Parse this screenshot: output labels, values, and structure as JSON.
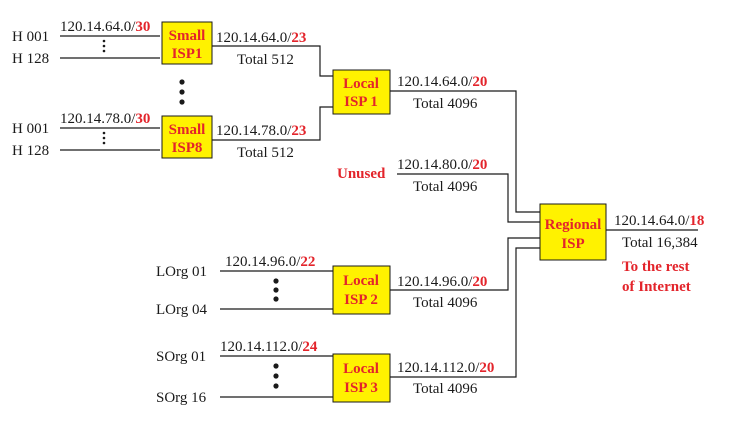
{
  "colors": {
    "accent": "#e3242b",
    "box_fill": "#fff200",
    "line": "#1a1a1a"
  },
  "hosts": {
    "isp1_first": "H 001",
    "isp1_last": "H 128",
    "isp8_first": "H 001",
    "isp8_last": "H 128"
  },
  "small_isp1": {
    "label_l1": "Small",
    "label_l2": "ISP1",
    "in_prefix": "120.14.64.0/",
    "in_len": "30",
    "out_prefix": "120.14.64.0/",
    "out_len": "23",
    "out_total": "Total 512"
  },
  "small_isp8": {
    "label_l1": "Small",
    "label_l2": "ISP8",
    "in_prefix": "120.14.78.0/",
    "in_len": "30",
    "out_prefix": "120.14.78.0/",
    "out_len": "23",
    "out_total": "Total 512"
  },
  "local_isp1": {
    "label_l1": "Local",
    "label_l2": "ISP 1",
    "out_prefix": "120.14.64.0/",
    "out_len": "20",
    "out_total": "Total 4096"
  },
  "unused": {
    "label": "Unused",
    "prefix": "120.14.80.0/",
    "len": "20",
    "total": "Total 4096"
  },
  "regional_isp": {
    "label_l1": "Regional",
    "label_l2": "ISP",
    "out_prefix": "120.14.64.0/",
    "out_len": "18",
    "out_total": "Total 16,384",
    "rest_l1": "To the rest",
    "rest_l2": "of Internet"
  },
  "local_isp2": {
    "label_l1": "Local",
    "label_l2": "ISP 2",
    "org_first": "LOrg 01",
    "org_last": "LOrg 04",
    "in_prefix": "120.14.96.0/",
    "in_len": "22",
    "out_prefix": "120.14.96.0/",
    "out_len": "20",
    "out_total": "Total 4096"
  },
  "local_isp3": {
    "label_l1": "Local",
    "label_l2": "ISP 3",
    "org_first": "SOrg 01",
    "org_last": "SOrg 16",
    "in_prefix": "120.14.112.0/",
    "in_len": "24",
    "out_prefix": "120.14.112.0/",
    "out_len": "20",
    "out_total": "Total 4096"
  }
}
